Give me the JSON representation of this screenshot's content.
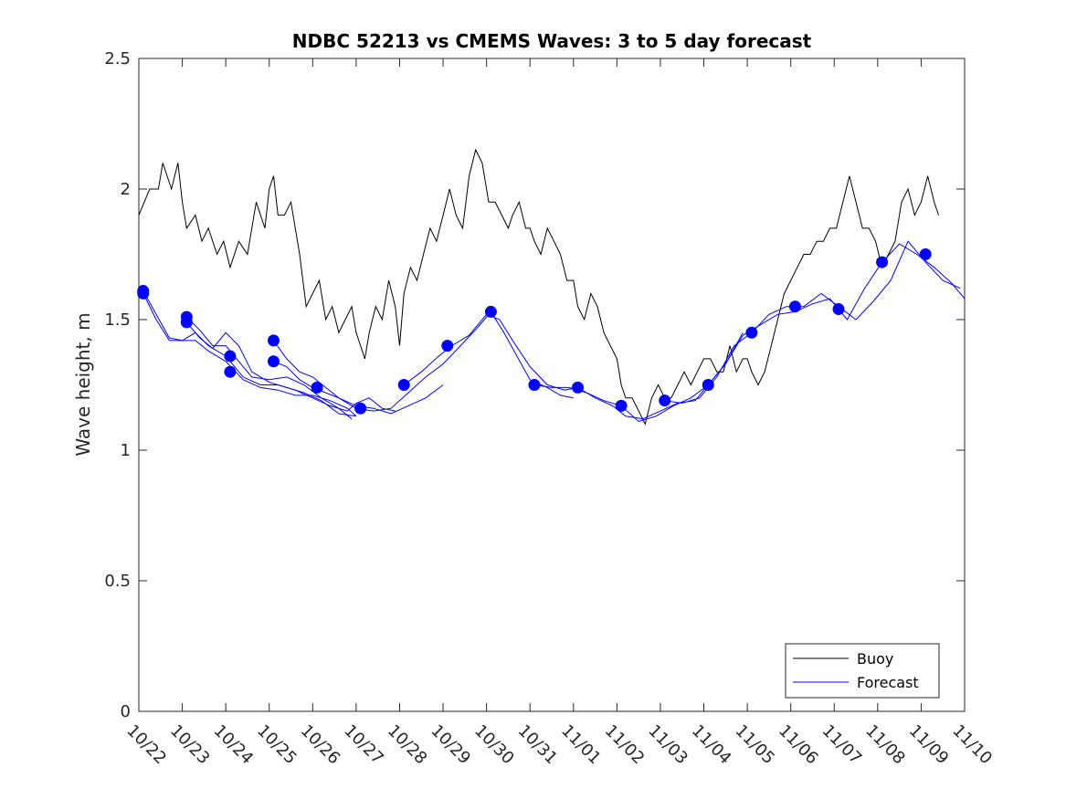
{
  "chart_data": {
    "type": "line",
    "title": "NDBC 52213 vs CMEMS Waves: 3 to 5 day forecast",
    "xlabel": "",
    "ylabel": "Wave height, m",
    "xlim": [
      0,
      19
    ],
    "ylim": [
      0,
      2.5
    ],
    "x_tick_labels": [
      "10/22",
      "10/23",
      "10/24",
      "10/25",
      "10/26",
      "10/27",
      "10/28",
      "10/29",
      "10/30",
      "10/31",
      "11/01",
      "11/02",
      "11/03",
      "11/04",
      "11/05",
      "11/06",
      "11/07",
      "11/08",
      "11/09",
      "11/10"
    ],
    "y_ticks": [
      0,
      0.5,
      1,
      1.5,
      2,
      2.5
    ],
    "y_tick_labels": [
      "0",
      "0.5",
      "1",
      "1.5",
      "2",
      "2.5"
    ],
    "legend": {
      "placement": "bottom-right",
      "entries": [
        "Buoy",
        "Forecast"
      ]
    },
    "colors": {
      "buoy": "#000000",
      "forecast": "#0000ff"
    },
    "series": [
      {
        "name": "Buoy",
        "color": "#000000",
        "x": [
          0.0,
          0.25,
          0.45,
          0.55,
          0.75,
          0.9,
          1.0,
          1.1,
          1.3,
          1.45,
          1.6,
          1.8,
          1.95,
          2.1,
          2.3,
          2.5,
          2.7,
          2.9,
          3.0,
          3.1,
          3.2,
          3.35,
          3.5,
          3.7,
          3.85,
          4.0,
          4.15,
          4.3,
          4.45,
          4.6,
          4.75,
          4.9,
          5.0,
          5.1,
          5.2,
          5.3,
          5.45,
          5.6,
          5.75,
          5.9,
          6.0,
          6.1,
          6.25,
          6.4,
          6.55,
          6.7,
          6.85,
          7.0,
          7.15,
          7.3,
          7.45,
          7.6,
          7.75,
          7.9,
          8.05,
          8.2,
          8.35,
          8.5,
          8.6,
          8.75,
          8.9,
          9.0,
          9.1,
          9.25,
          9.4,
          9.55,
          9.7,
          9.85,
          10.0,
          10.1,
          10.25,
          10.4,
          10.55,
          10.7,
          10.85,
          11.0,
          11.1,
          11.2,
          11.35,
          11.5,
          11.65,
          11.8,
          11.95,
          12.1,
          12.25,
          12.4,
          12.55,
          12.7,
          12.85,
          13.0,
          13.15,
          13.3,
          13.45,
          13.6,
          13.75,
          13.9,
          14.0,
          14.1,
          14.25,
          14.4,
          14.55,
          14.7,
          14.85,
          15.0,
          15.15,
          15.3,
          15.45,
          15.6,
          15.75,
          15.9,
          16.05,
          16.2,
          16.35,
          16.5,
          16.65,
          16.8,
          16.95,
          17.1,
          17.25,
          17.4,
          17.55,
          17.7,
          17.85,
          18.0,
          18.15,
          18.3,
          18.4
        ],
        "y": [
          1.9,
          2.0,
          2.0,
          2.1,
          2.0,
          2.1,
          1.95,
          1.85,
          1.9,
          1.8,
          1.85,
          1.75,
          1.8,
          1.7,
          1.8,
          1.75,
          1.95,
          1.85,
          2.0,
          2.05,
          1.9,
          1.9,
          1.95,
          1.75,
          1.55,
          1.6,
          1.65,
          1.5,
          1.55,
          1.45,
          1.5,
          1.55,
          1.45,
          1.4,
          1.35,
          1.45,
          1.55,
          1.5,
          1.65,
          1.55,
          1.4,
          1.6,
          1.7,
          1.65,
          1.75,
          1.85,
          1.8,
          1.9,
          2.0,
          1.9,
          1.85,
          2.05,
          2.15,
          2.1,
          1.95,
          1.95,
          1.9,
          1.85,
          1.9,
          1.95,
          1.85,
          1.85,
          1.8,
          1.75,
          1.85,
          1.8,
          1.75,
          1.65,
          1.65,
          1.55,
          1.5,
          1.6,
          1.55,
          1.45,
          1.4,
          1.35,
          1.25,
          1.2,
          1.2,
          1.15,
          1.1,
          1.2,
          1.25,
          1.2,
          1.2,
          1.25,
          1.3,
          1.25,
          1.3,
          1.35,
          1.35,
          1.3,
          1.3,
          1.4,
          1.3,
          1.35,
          1.35,
          1.3,
          1.25,
          1.3,
          1.4,
          1.5,
          1.6,
          1.65,
          1.7,
          1.75,
          1.75,
          1.8,
          1.8,
          1.85,
          1.85,
          1.95,
          2.05,
          1.95,
          1.85,
          1.85,
          1.8,
          1.7,
          1.75,
          1.8,
          1.95,
          2.0,
          1.9,
          1.95,
          2.05,
          1.95,
          1.9
        ]
      },
      {
        "name": "Forecast",
        "color": "#0000ff",
        "runs": [
          {
            "x": [
              0.1,
              0.4,
              0.7,
              1.0,
              1.3,
              1.6,
              2.0,
              2.4,
              2.8,
              3.2,
              3.6,
              4.0,
              4.4,
              4.8,
              5.0,
              5.3,
              5.6,
              5.9
            ],
            "y": [
              1.61,
              1.52,
              1.43,
              1.42,
              1.45,
              1.4,
              1.36,
              1.28,
              1.25,
              1.25,
              1.23,
              1.2,
              1.17,
              1.15,
              1.18,
              1.2,
              1.16,
              1.15
            ]
          },
          {
            "x": [
              0.1,
              0.4,
              0.7,
              1.0,
              1.3,
              1.6,
              2.0,
              2.4,
              2.8,
              3.2,
              3.6,
              4.0,
              4.4,
              4.8,
              5.0
            ],
            "y": [
              1.6,
              1.5,
              1.42,
              1.42,
              1.42,
              1.38,
              1.34,
              1.27,
              1.24,
              1.23,
              1.21,
              1.21,
              1.19,
              1.16,
              1.13
            ]
          },
          {
            "x": [
              1.1,
              1.4,
              1.7,
              2.0,
              2.3,
              2.6,
              3.0,
              3.4,
              3.8,
              4.2,
              4.6,
              4.9
            ],
            "y": [
              1.51,
              1.46,
              1.4,
              1.4,
              1.34,
              1.28,
              1.27,
              1.28,
              1.25,
              1.2,
              1.16,
              1.12
            ]
          },
          {
            "x": [
              1.1,
              1.4,
              1.7,
              2.0,
              2.3,
              2.6,
              3.0,
              3.4,
              3.8,
              4.2,
              4.6,
              5.0
            ],
            "y": [
              1.49,
              1.43,
              1.39,
              1.45,
              1.4,
              1.3,
              1.26,
              1.24,
              1.22,
              1.19,
              1.14,
              1.13
            ]
          },
          {
            "x": [
              3.1,
              3.4,
              3.7,
              4.0,
              4.3,
              4.6,
              5.0,
              5.4,
              5.8,
              6.2,
              6.6,
              7.0
            ],
            "y": [
              1.42,
              1.35,
              1.3,
              1.28,
              1.24,
              1.2,
              1.17,
              1.16,
              1.14,
              1.17,
              1.2,
              1.25
            ]
          },
          {
            "x": [
              3.1,
              3.4,
              3.7,
              4.0,
              4.3,
              4.6,
              5.0,
              5.4,
              5.8,
              6.2,
              6.6,
              7.0,
              7.4,
              7.8,
              8.1,
              8.4,
              8.7,
              9.0,
              9.4,
              9.7,
              10.0
            ],
            "y": [
              1.34,
              1.32,
              1.27,
              1.24,
              1.22,
              1.2,
              1.16,
              1.15,
              1.16,
              1.22,
              1.28,
              1.33,
              1.4,
              1.47,
              1.53,
              1.45,
              1.36,
              1.27,
              1.24,
              1.21,
              1.2
            ]
          },
          {
            "x": [
              6.1,
              6.5,
              6.9,
              7.2,
              7.6,
              8.0,
              8.3,
              8.6,
              9.0,
              9.4,
              9.8,
              10.1,
              10.5,
              10.9,
              11.2,
              11.6,
              12.0,
              12.4,
              12.8,
              13.1,
              13.5,
              13.9
            ],
            "y": [
              1.25,
              1.3,
              1.36,
              1.4,
              1.44,
              1.52,
              1.5,
              1.42,
              1.32,
              1.25,
              1.23,
              1.24,
              1.2,
              1.17,
              1.13,
              1.12,
              1.15,
              1.18,
              1.19,
              1.25,
              1.33,
              1.45
            ]
          },
          {
            "x": [
              9.1,
              9.5,
              9.9,
              10.3,
              10.7,
              11.1,
              11.5,
              11.9,
              12.3,
              12.7,
              13.1,
              13.5,
              13.9,
              14.3,
              14.7,
              15.1,
              15.5,
              15.9,
              16.3,
              16.7,
              17.1,
              17.5,
              17.9,
              18.3,
              18.7,
              19.0
            ],
            "y": [
              1.25,
              1.24,
              1.24,
              1.22,
              1.19,
              1.17,
              1.11,
              1.13,
              1.17,
              1.2,
              1.25,
              1.33,
              1.44,
              1.48,
              1.52,
              1.53,
              1.56,
              1.58,
              1.5,
              1.62,
              1.72,
              1.79,
              1.75,
              1.7,
              1.64,
              1.58
            ]
          },
          {
            "x": [
              12.1,
              12.5,
              12.9,
              13.3,
              13.7,
              14.1,
              14.5,
              14.9,
              15.3,
              15.7,
              16.1,
              16.5,
              16.9,
              17.3,
              17.7,
              18.1,
              18.5,
              18.9
            ],
            "y": [
              1.19,
              1.18,
              1.2,
              1.28,
              1.4,
              1.45,
              1.52,
              1.55,
              1.55,
              1.6,
              1.55,
              1.5,
              1.57,
              1.65,
              1.8,
              1.72,
              1.65,
              1.62
            ]
          }
        ],
        "markers": [
          {
            "x": 0.1,
            "y": 1.61
          },
          {
            "x": 0.1,
            "y": 1.6
          },
          {
            "x": 1.1,
            "y": 1.51
          },
          {
            "x": 1.1,
            "y": 1.49
          },
          {
            "x": 2.1,
            "y": 1.36
          },
          {
            "x": 2.1,
            "y": 1.3
          },
          {
            "x": 3.1,
            "y": 1.42
          },
          {
            "x": 3.1,
            "y": 1.34
          },
          {
            "x": 4.1,
            "y": 1.24
          },
          {
            "x": 5.1,
            "y": 1.16
          },
          {
            "x": 6.1,
            "y": 1.25
          },
          {
            "x": 7.1,
            "y": 1.4
          },
          {
            "x": 8.1,
            "y": 1.53
          },
          {
            "x": 9.1,
            "y": 1.25
          },
          {
            "x": 10.1,
            "y": 1.24
          },
          {
            "x": 11.1,
            "y": 1.17
          },
          {
            "x": 12.1,
            "y": 1.19
          },
          {
            "x": 13.1,
            "y": 1.25
          },
          {
            "x": 14.1,
            "y": 1.45
          },
          {
            "x": 15.1,
            "y": 1.55
          },
          {
            "x": 16.1,
            "y": 1.54
          },
          {
            "x": 17.1,
            "y": 1.72
          },
          {
            "x": 18.1,
            "y": 1.75
          }
        ]
      }
    ]
  }
}
